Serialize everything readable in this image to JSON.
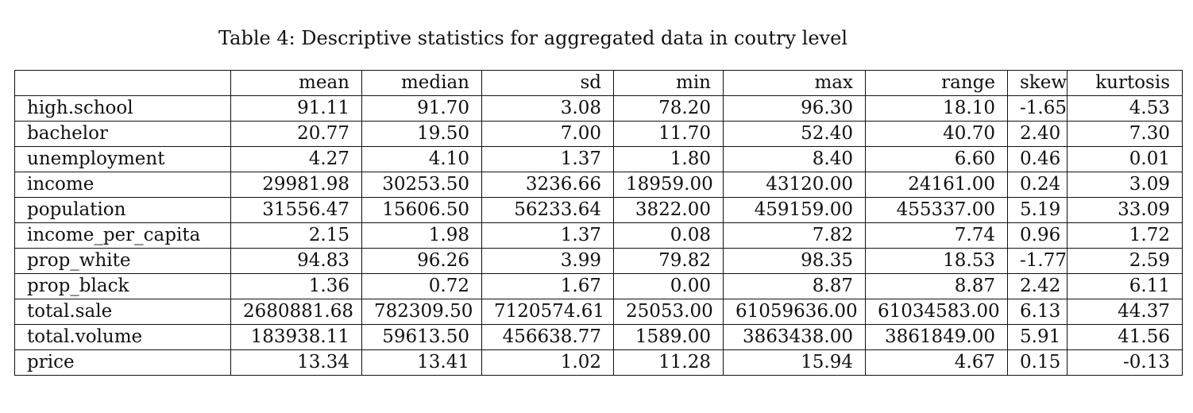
{
  "caption": "Table 4: Descriptive statistics for aggregated data in coutry level",
  "table": {
    "corner": "",
    "columns": [
      "mean",
      "median",
      "sd",
      "min",
      "max",
      "range",
      "skew",
      "kurtosis"
    ],
    "rows": [
      {
        "name": "high.school",
        "values": [
          "91.11",
          "91.70",
          "3.08",
          "78.20",
          "96.30",
          "18.10",
          "-1.65",
          "4.53"
        ]
      },
      {
        "name": "bachelor",
        "values": [
          "20.77",
          "19.50",
          "7.00",
          "11.70",
          "52.40",
          "40.70",
          "2.40",
          "7.30"
        ]
      },
      {
        "name": "unemployment",
        "values": [
          "4.27",
          "4.10",
          "1.37",
          "1.80",
          "8.40",
          "6.60",
          "0.46",
          "0.01"
        ]
      },
      {
        "name": "income",
        "values": [
          "29981.98",
          "30253.50",
          "3236.66",
          "18959.00",
          "43120.00",
          "24161.00",
          "0.24",
          "3.09"
        ]
      },
      {
        "name": "population",
        "values": [
          "31556.47",
          "15606.50",
          "56233.64",
          "3822.00",
          "459159.00",
          "455337.00",
          "5.19",
          "33.09"
        ]
      },
      {
        "name": "income_per_capita",
        "values": [
          "2.15",
          "1.98",
          "1.37",
          "0.08",
          "7.82",
          "7.74",
          "0.96",
          "1.72"
        ]
      },
      {
        "name": "prop_white",
        "values": [
          "94.83",
          "96.26",
          "3.99",
          "79.82",
          "98.35",
          "18.53",
          "-1.77",
          "2.59"
        ]
      },
      {
        "name": "prop_black",
        "values": [
          "1.36",
          "0.72",
          "1.67",
          "0.00",
          "8.87",
          "8.87",
          "2.42",
          "6.11"
        ]
      },
      {
        "name": "total.sale",
        "values": [
          "2680881.68",
          "782309.50",
          "7120574.61",
          "25053.00",
          "61059636.00",
          "61034583.00",
          "6.13",
          "44.37"
        ]
      },
      {
        "name": "total.volume",
        "values": [
          "183938.11",
          "59613.50",
          "456638.77",
          "1589.00",
          "3863438.00",
          "3861849.00",
          "5.91",
          "41.56"
        ]
      },
      {
        "name": "price",
        "values": [
          "13.34",
          "13.41",
          "1.02",
          "11.28",
          "15.94",
          "4.67",
          "0.15",
          "-0.13"
        ]
      }
    ]
  }
}
